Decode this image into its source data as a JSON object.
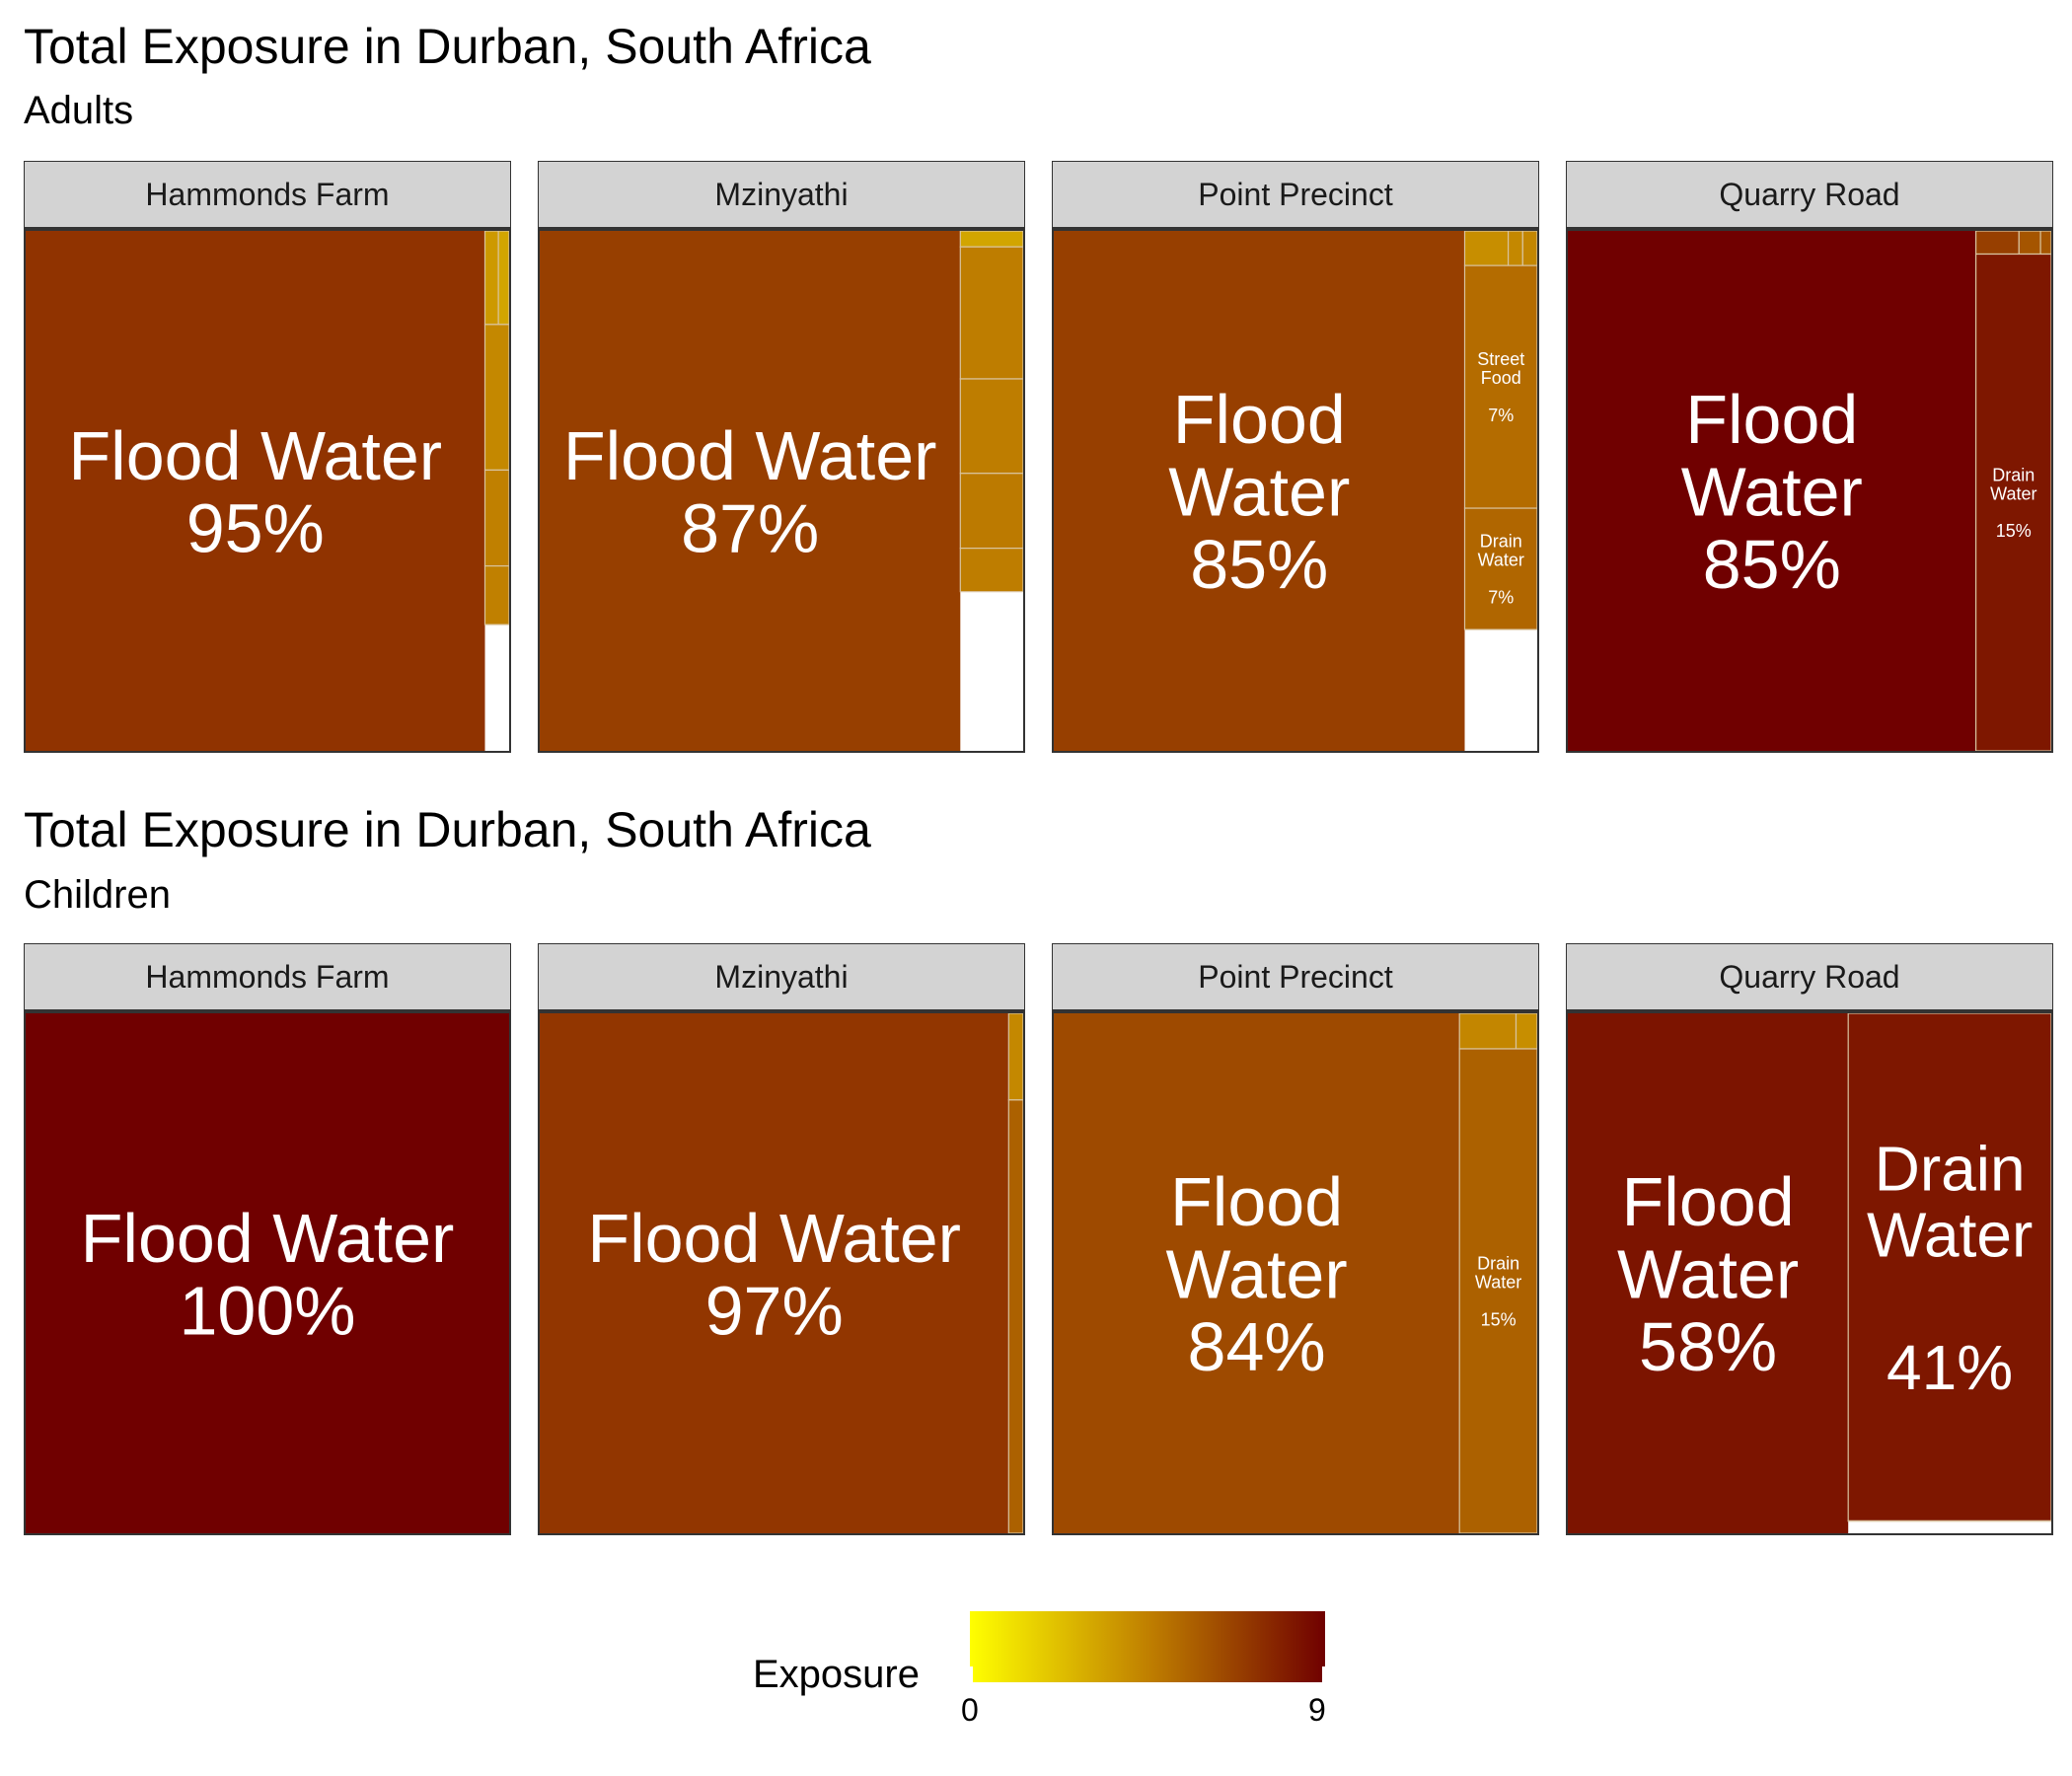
{
  "colors": {
    "low": "#ffff00",
    "mid": "#c08000",
    "high": "#700000"
  },
  "legend": {
    "title": "Exposure",
    "min_label": "0",
    "max_label": "9"
  },
  "sections": [
    {
      "title": "Total Exposure in Durban, South Africa",
      "subtitle": "Adults"
    },
    {
      "title": "Total Exposure in Durban, South Africa",
      "subtitle": "Children"
    }
  ],
  "chart_data": [
    {
      "type": "treemap",
      "title": "Total Exposure in Durban, South Africa",
      "subtitle": "Adults",
      "color_scale": {
        "name": "Exposure",
        "range": [
          0,
          9
        ]
      },
      "panels": [
        {
          "name": "Hammonds Farm",
          "cells": [
            {
              "label": "Flood Water",
              "share": 95,
              "exposure": 7.2,
              "text": "95%"
            },
            {
              "label": "",
              "share": 1.4,
              "exposure": 4.2
            },
            {
              "label": "",
              "share": 1.4,
              "exposure": 4.5
            },
            {
              "label": "",
              "share": 1.3,
              "exposure": 4.5
            },
            {
              "label": "",
              "share": 0.5,
              "exposure": 3.6
            },
            {
              "label": "",
              "share": 0.4,
              "exposure": 3.2
            }
          ]
        },
        {
          "name": "Mzinyathi",
          "cells": [
            {
              "label": "Flood Water",
              "share": 87,
              "exposure": 6.8,
              "text": "87%"
            },
            {
              "label": "",
              "share": 3.3,
              "exposure": 4.6
            },
            {
              "label": "",
              "share": 3.2,
              "exposure": 4.6
            },
            {
              "label": "",
              "share": 3.4,
              "exposure": 4.7
            },
            {
              "label": "",
              "share": 2.7,
              "exposure": 4.6
            },
            {
              "label": "",
              "share": 0.4,
              "exposure": 3.2
            }
          ]
        },
        {
          "name": "Point Precinct",
          "cells": [
            {
              "label": "Flood Water",
              "share": 85,
              "exposure": 6.8,
              "text": "85%"
            },
            {
              "label": "Street Food",
              "share": 7,
              "exposure": 5.2,
              "text": "7%"
            },
            {
              "label": "Drain Water",
              "share": 7,
              "exposure": 5.4,
              "text": "7%"
            },
            {
              "label": "",
              "share": 0.6,
              "exposure": 4.0
            },
            {
              "label": "",
              "share": 0.2,
              "exposure": 4.2
            },
            {
              "label": "",
              "share": 0.2,
              "exposure": 4.3
            }
          ]
        },
        {
          "name": "Quarry Road",
          "cells": [
            {
              "label": "Flood Water",
              "share": 85,
              "exposure": 9.0,
              "text": "85%"
            },
            {
              "label": "Drain Water",
              "share": 15,
              "exposure": 8.2,
              "text": "15%"
            },
            {
              "label": "",
              "share": 0.4,
              "exposure": 6.8
            },
            {
              "label": "",
              "share": 0.2,
              "exposure": 6.0
            },
            {
              "label": "",
              "share": 0.1,
              "exposure": 6.0
            }
          ]
        }
      ]
    },
    {
      "type": "treemap",
      "title": "Total Exposure in Durban, South Africa",
      "subtitle": "Children",
      "color_scale": {
        "name": "Exposure",
        "range": [
          0,
          9
        ]
      },
      "panels": [
        {
          "name": "Hammonds Farm",
          "cells": [
            {
              "label": "Flood Water",
              "share": 100,
              "exposure": 9.0,
              "text": "100%"
            }
          ]
        },
        {
          "name": "Mzinyathi",
          "cells": [
            {
              "label": "Flood Water",
              "share": 97,
              "exposure": 7.1,
              "text": "97%"
            },
            {
              "label": "",
              "share": 2.5,
              "exposure": 5.6
            },
            {
              "label": "",
              "share": 0.5,
              "exposure": 4.2
            }
          ]
        },
        {
          "name": "Point Precinct",
          "cells": [
            {
              "label": "Flood Water",
              "share": 84,
              "exposure": 6.4,
              "text": "84%"
            },
            {
              "label": "Drain Water",
              "share": 15,
              "exposure": 5.6,
              "text": "15%"
            },
            {
              "label": "",
              "share": 0.8,
              "exposure": 4.3
            },
            {
              "label": "",
              "share": 0.3,
              "exposure": 4.0
            }
          ]
        },
        {
          "name": "Quarry Road",
          "cells": [
            {
              "label": "Flood Water",
              "share": 58,
              "exposure": 8.3,
              "text": "58%"
            },
            {
              "label": "Drain Water",
              "share": 41,
              "exposure": 8.2,
              "text": "41%"
            },
            {
              "label": "",
              "share": 1,
              "exposure": 6.8
            }
          ]
        }
      ]
    }
  ]
}
